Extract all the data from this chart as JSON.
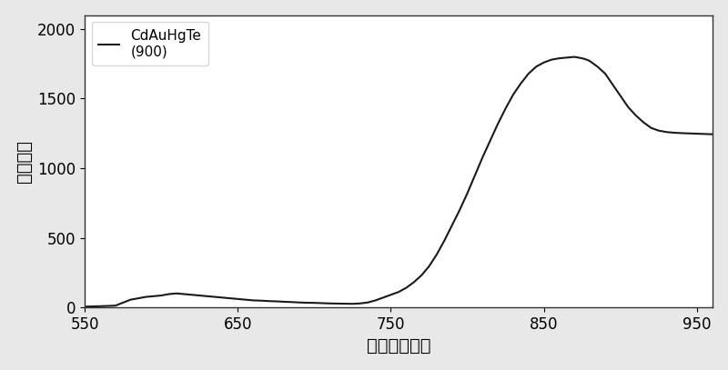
{
  "title": "",
  "xlabel": "波长（纳米）",
  "ylabel": "荧光强度",
  "legend_label": "CdAuHgTe\n(900)",
  "xlim": [
    550,
    960
  ],
  "ylim": [
    0,
    2100
  ],
  "xticks": [
    550,
    650,
    750,
    850,
    950
  ],
  "yticks": [
    0,
    500,
    1000,
    1500,
    2000
  ],
  "line_color": "#1a1a1a",
  "line_width": 1.5,
  "background_color": "#ffffff",
  "x_data": [
    550,
    560,
    570,
    580,
    590,
    600,
    605,
    610,
    615,
    620,
    625,
    630,
    635,
    640,
    645,
    650,
    655,
    660,
    665,
    670,
    675,
    680,
    685,
    690,
    695,
    700,
    705,
    710,
    715,
    720,
    725,
    730,
    735,
    740,
    745,
    750,
    755,
    760,
    765,
    770,
    775,
    780,
    785,
    790,
    795,
    800,
    805,
    810,
    815,
    820,
    825,
    830,
    835,
    840,
    845,
    850,
    855,
    860,
    865,
    870,
    875,
    878,
    880,
    885,
    890,
    895,
    900,
    905,
    910,
    915,
    920,
    925,
    930,
    935,
    940,
    945,
    950,
    955,
    960
  ],
  "y_data": [
    5,
    8,
    12,
    55,
    75,
    85,
    95,
    100,
    95,
    90,
    85,
    80,
    75,
    70,
    65,
    60,
    55,
    50,
    48,
    45,
    43,
    40,
    38,
    35,
    33,
    32,
    30,
    28,
    27,
    26,
    25,
    28,
    35,
    50,
    70,
    90,
    110,
    140,
    180,
    230,
    295,
    380,
    480,
    590,
    700,
    820,
    950,
    1080,
    1200,
    1320,
    1430,
    1530,
    1610,
    1680,
    1730,
    1760,
    1780,
    1790,
    1795,
    1800,
    1790,
    1780,
    1770,
    1730,
    1680,
    1600,
    1520,
    1440,
    1380,
    1330,
    1290,
    1270,
    1260,
    1255,
    1252,
    1250,
    1248,
    1246,
    1244
  ]
}
